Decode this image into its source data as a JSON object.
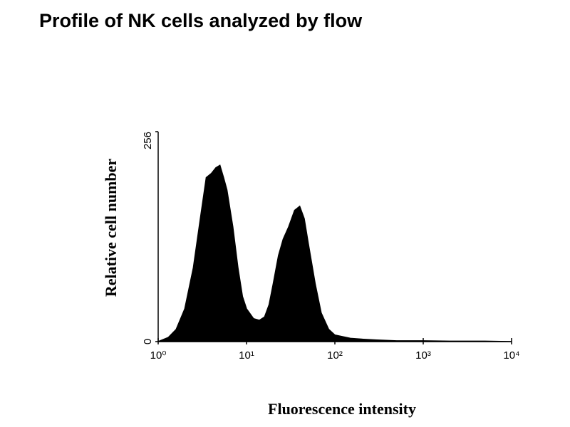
{
  "chart_data": {
    "type": "area",
    "title": "Profile of NK cells analyzed by flow",
    "x_label": "Fluorescence intensity",
    "y_label": "Relative cell number",
    "xscale": "log",
    "color": "#000000",
    "xlim": [
      1,
      10000
    ],
    "ylim": [
      0,
      256
    ],
    "xticks": [
      {
        "value": 1,
        "label": "10⁰"
      },
      {
        "value": 10,
        "label": "10¹"
      },
      {
        "value": 100,
        "label": "10²"
      },
      {
        "value": 1000,
        "label": "10³"
      },
      {
        "value": 10000,
        "label": "10⁴"
      }
    ],
    "yticks": [
      0,
      256
    ],
    "x": [
      1,
      1.3,
      1.6,
      2,
      2.5,
      3,
      3.5,
      4,
      4.5,
      5,
      5.5,
      6,
      7,
      8,
      9,
      10,
      12,
      14,
      16,
      18,
      20,
      23,
      26,
      30,
      35,
      40,
      45,
      50,
      60,
      70,
      85,
      100,
      150,
      200,
      300,
      500,
      1000,
      2000,
      5000,
      10000
    ],
    "values": [
      0,
      5,
      15,
      40,
      90,
      150,
      200,
      205,
      212,
      215,
      200,
      185,
      140,
      90,
      55,
      40,
      28,
      26,
      30,
      45,
      70,
      105,
      125,
      140,
      160,
      165,
      150,
      120,
      70,
      35,
      15,
      8,
      4,
      3,
      2,
      1,
      1,
      0.5,
      0.5,
      0
    ]
  }
}
